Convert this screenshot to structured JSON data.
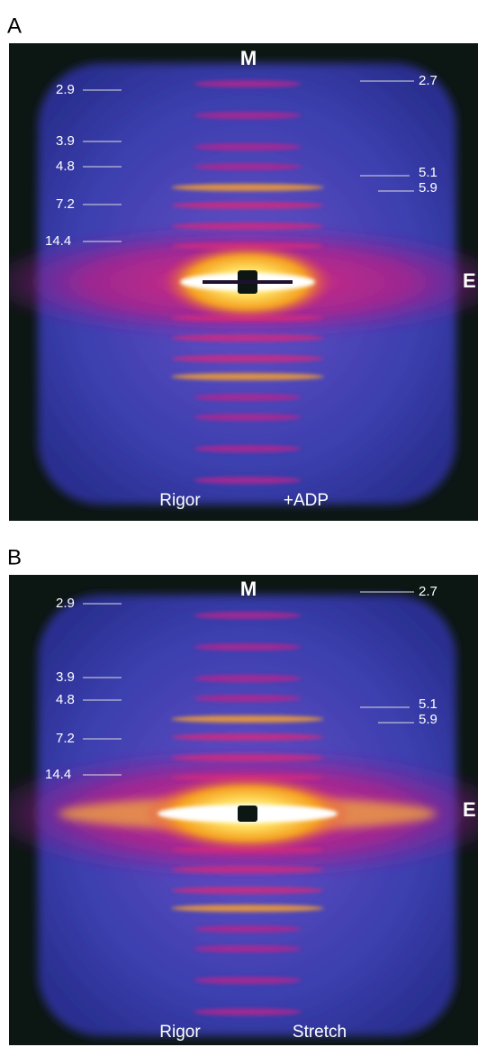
{
  "panels": [
    {
      "label": "A",
      "top_label": "M",
      "right_label": "E",
      "left_spacings": [
        "2.9",
        "3.9",
        "4.8",
        "7.2",
        "14.4"
      ],
      "right_spacings": [
        "2.7",
        "5.1",
        "5.9"
      ],
      "bottom_labels": [
        "Rigor",
        "+ADP"
      ]
    },
    {
      "label": "B",
      "top_label": "M",
      "right_label": "E",
      "left_spacings": [
        "2.9",
        "3.9",
        "4.8",
        "7.2",
        "14.4"
      ],
      "right_spacings": [
        "2.7",
        "5.1",
        "5.9"
      ],
      "bottom_labels": [
        "Rigor",
        "Stretch"
      ]
    }
  ]
}
